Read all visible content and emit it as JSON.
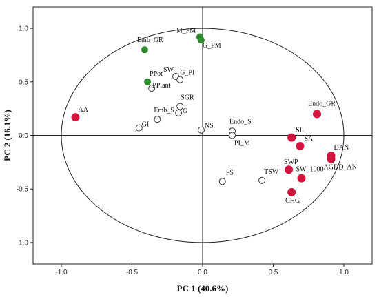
{
  "chart_data": {
    "type": "scatter",
    "xlabel": "PC 1 (40.6%)",
    "ylabel": "PC 2 (16.1%)",
    "xlim": [
      -1.2,
      1.2
    ],
    "ylim": [
      -1.2,
      1.2
    ],
    "x_ticks": [
      "-1.0",
      "-0.5",
      "0.0",
      "0.5",
      "1.0"
    ],
    "y_ticks": [
      "1.0",
      "0.5",
      "0.0",
      "-0.5",
      "-1.0"
    ],
    "unit_circle": true,
    "reference_lines": [
      0,
      0
    ],
    "colors": {
      "red": "#d4133f",
      "green": "#2e8b2e",
      "hollow": "#ffffff"
    },
    "points": [
      {
        "label": "M_PM",
        "x": -0.02,
        "y": 0.92,
        "group": "green"
      },
      {
        "label": "G_PM",
        "x": -0.01,
        "y": 0.89,
        "group": "green"
      },
      {
        "label": "Emb_GR",
        "x": -0.41,
        "y": 0.8,
        "group": "green"
      },
      {
        "label": "PPot",
        "x": -0.39,
        "y": 0.5,
        "group": "green"
      },
      {
        "label": "PPlant",
        "x": -0.36,
        "y": 0.44,
        "group": "hollow"
      },
      {
        "label": "SW",
        "x": -0.19,
        "y": 0.55,
        "group": "hollow"
      },
      {
        "label": "G_PI",
        "x": -0.16,
        "y": 0.52,
        "group": "hollow"
      },
      {
        "label": "SGR",
        "x": -0.16,
        "y": 0.27,
        "group": "hollow"
      },
      {
        "label": "G",
        "x": -0.17,
        "y": 0.21,
        "group": "hollow"
      },
      {
        "label": "Emb_S",
        "x": -0.32,
        "y": 0.15,
        "group": "hollow"
      },
      {
        "label": "GI",
        "x": -0.45,
        "y": 0.07,
        "group": "hollow"
      },
      {
        "label": "NS",
        "x": -0.01,
        "y": 0.05,
        "group": "hollow"
      },
      {
        "label": "Endo_S",
        "x": 0.21,
        "y": 0.04,
        "group": "hollow"
      },
      {
        "label": "PI_M",
        "x": 0.21,
        "y": 0.0,
        "group": "hollow"
      },
      {
        "label": "FS",
        "x": 0.14,
        "y": -0.43,
        "group": "hollow"
      },
      {
        "label": "TSW",
        "x": 0.42,
        "y": -0.42,
        "group": "hollow"
      },
      {
        "label": "AA",
        "x": -0.9,
        "y": 0.17,
        "group": "red"
      },
      {
        "label": "Endo_GR",
        "x": 0.81,
        "y": 0.2,
        "group": "red"
      },
      {
        "label": "SL",
        "x": 0.63,
        "y": -0.02,
        "group": "red"
      },
      {
        "label": "SA",
        "x": 0.69,
        "y": -0.1,
        "group": "red"
      },
      {
        "label": "DAN",
        "x": 0.91,
        "y": -0.19,
        "group": "red"
      },
      {
        "label": "AGDD_AN",
        "x": 0.91,
        "y": -0.22,
        "group": "red"
      },
      {
        "label": "SWP",
        "x": 0.61,
        "y": -0.32,
        "group": "red"
      },
      {
        "label": "SW_1000",
        "x": 0.7,
        "y": -0.4,
        "group": "red"
      },
      {
        "label": "CHG",
        "x": 0.63,
        "y": -0.53,
        "group": "red"
      }
    ]
  }
}
